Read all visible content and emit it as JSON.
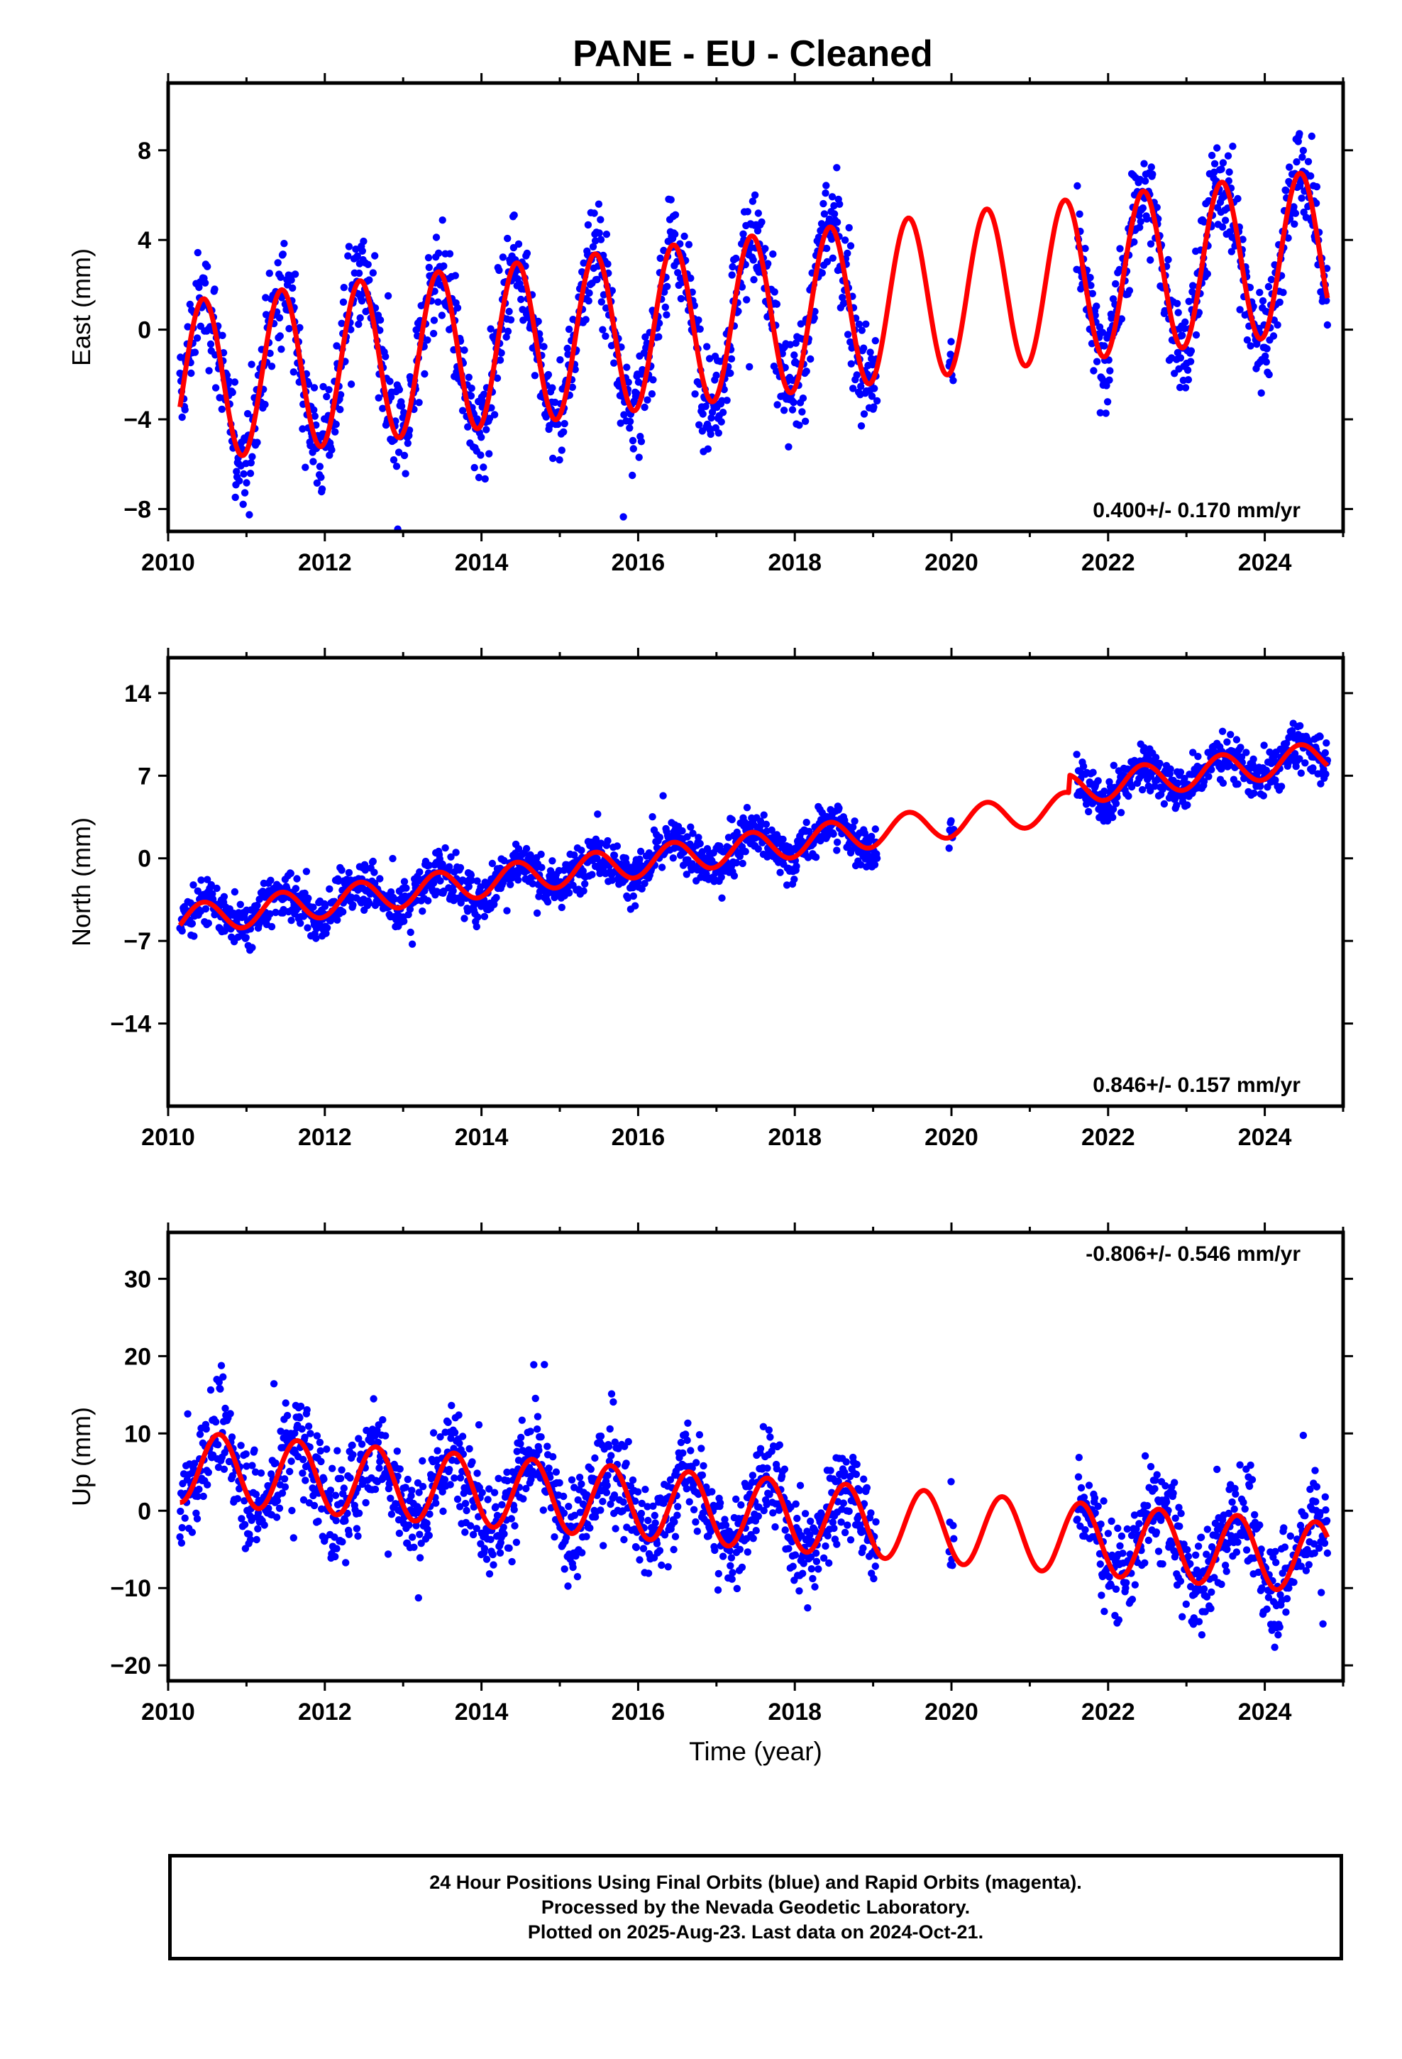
{
  "title": "PANE  - EU - Cleaned",
  "colors": {
    "data": "#0000ff",
    "model": "#ff0000",
    "frame": "#000000"
  },
  "chart_data": [
    {
      "type": "scatter",
      "ylabel": "East (mm)",
      "xlabel": "",
      "xlim": [
        2010,
        2025
      ],
      "ylim": [
        -9,
        11
      ],
      "xticks": [
        2010,
        2012,
        2014,
        2016,
        2018,
        2020,
        2022,
        2024
      ],
      "yticks": [
        -8,
        -4,
        0,
        4,
        8
      ],
      "rate_label": "0.400+/- 0.170 mm/yr",
      "rate_label_position": "bottom-right",
      "model": {
        "rate": 0.4,
        "intercept_2010": -2.4,
        "annual_amplitude": 3.6,
        "peak_phase_year_fraction": 0.45
      },
      "data_periods": [
        [
          2010.15,
          2019.05
        ],
        [
          2019.97,
          2020.03
        ],
        [
          2021.6,
          2024.8
        ]
      ],
      "scatter_spread": 1.6,
      "points_per_year": 140,
      "series": [
        {
          "name": "",
          "style": "dots",
          "color": "#0000ff"
        },
        {
          "name": "",
          "style": "line",
          "color": "#ff0000"
        }
      ]
    },
    {
      "type": "scatter",
      "ylabel": "North (mm)",
      "xlabel": "",
      "xlim": [
        2010,
        2025
      ],
      "ylim": [
        -21,
        17
      ],
      "xticks": [
        2010,
        2012,
        2014,
        2016,
        2018,
        2020,
        2022,
        2024
      ],
      "yticks": [
        -14,
        -7,
        0,
        7,
        14
      ],
      "rate_label": "0.846+/- 0.157 mm/yr",
      "rate_label_position": "bottom-right",
      "model": {
        "rate": 0.846,
        "intercept_2010": -5.4,
        "annual_amplitude": 1.3,
        "peak_phase_year_fraction": 0.45,
        "offset_after": [
          2021.5,
          1.5
        ]
      },
      "data_periods": [
        [
          2010.15,
          2019.05
        ],
        [
          2019.97,
          2020.03
        ],
        [
          2021.6,
          2024.8
        ]
      ],
      "scatter_spread": 1.4,
      "points_per_year": 140,
      "series": [
        {
          "name": "",
          "style": "dots",
          "color": "#0000ff"
        },
        {
          "name": "",
          "style": "line",
          "color": "#ff0000"
        }
      ]
    },
    {
      "type": "scatter",
      "ylabel": "Up (mm)",
      "xlabel": "Time (year)",
      "xlim": [
        2010,
        2025
      ],
      "ylim": [
        -22,
        36
      ],
      "xticks": [
        2010,
        2012,
        2014,
        2016,
        2018,
        2020,
        2022,
        2024
      ],
      "yticks": [
        -20,
        -10,
        0,
        10,
        20,
        30
      ],
      "rate_label": "-0.806+/- 0.546 mm/yr",
      "rate_label_position": "top-right",
      "model": {
        "rate": -0.806,
        "intercept_2010": 5.8,
        "annual_amplitude": 4.6,
        "peak_phase_year_fraction": 0.65
      },
      "data_periods": [
        [
          2010.15,
          2019.05
        ],
        [
          2019.97,
          2020.03
        ],
        [
          2021.6,
          2024.8
        ]
      ],
      "scatter_spread": 4.5,
      "points_per_year": 140,
      "series": [
        {
          "name": "",
          "style": "dots",
          "color": "#0000ff"
        },
        {
          "name": "",
          "style": "line",
          "color": "#ff0000"
        }
      ]
    }
  ],
  "footer": {
    "line1": "24 Hour Positions Using Final Orbits (blue) and Rapid Orbits (magenta).",
    "line2": "Processed by the Nevada Geodetic Laboratory.",
    "line3": "Plotted on 2025-Aug-23. Last data on 2024-Oct-21."
  }
}
